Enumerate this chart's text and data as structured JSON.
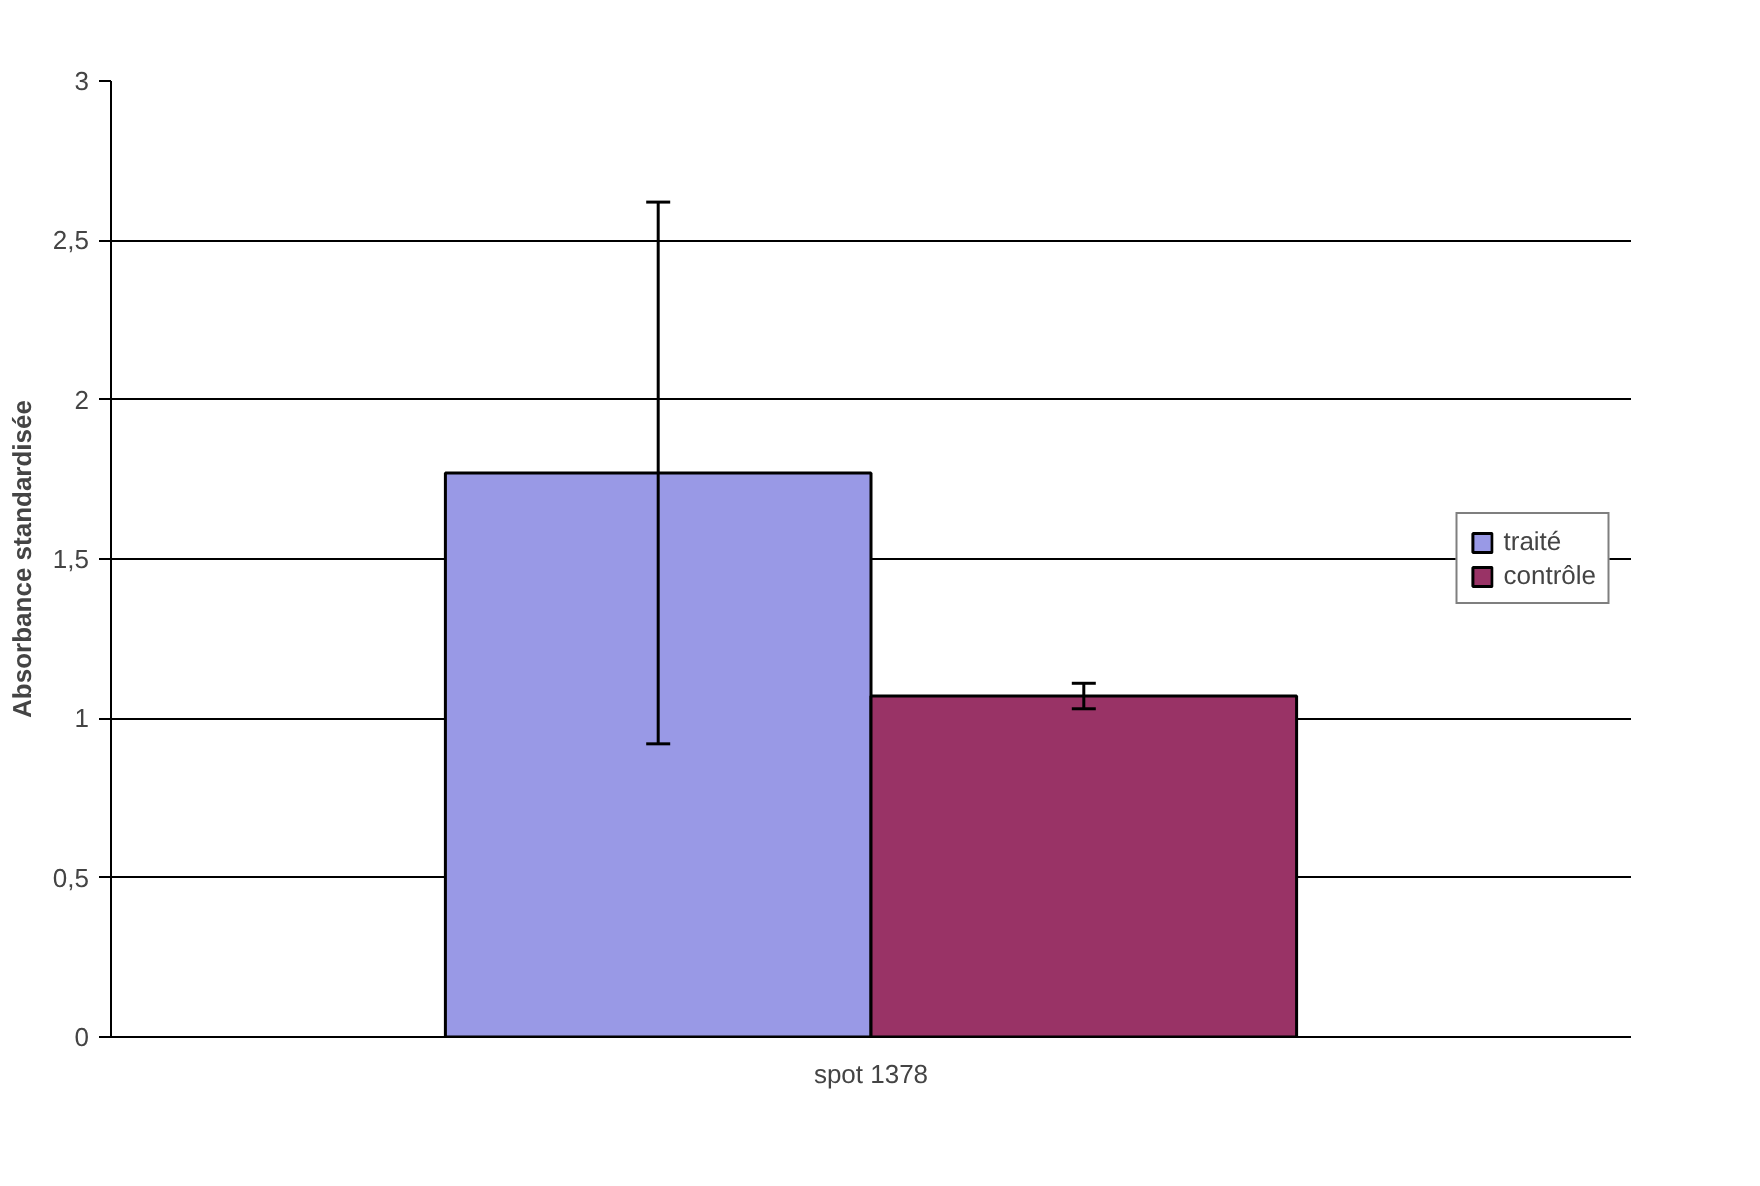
{
  "chart_data": {
    "type": "bar",
    "ylabel": "Absorbance standardisée",
    "categories": [
      "spot 1378"
    ],
    "series": [
      {
        "name": "traité",
        "color": "#9999e6",
        "values": [
          1.77
        ],
        "errors": [
          0.85
        ]
      },
      {
        "name": "contrôle",
        "color": "#993366",
        "values": [
          1.07
        ],
        "errors": [
          0.04
        ]
      }
    ],
    "ylim": [
      0,
      3
    ],
    "yticks": [
      0,
      {
        "value": 0.5,
        "label": "0,5"
      },
      1,
      {
        "value": 1.5,
        "label": "1,5"
      },
      2,
      {
        "value": 2.5,
        "label": "2,5"
      },
      3
    ],
    "grid": "y",
    "legend": "right"
  }
}
